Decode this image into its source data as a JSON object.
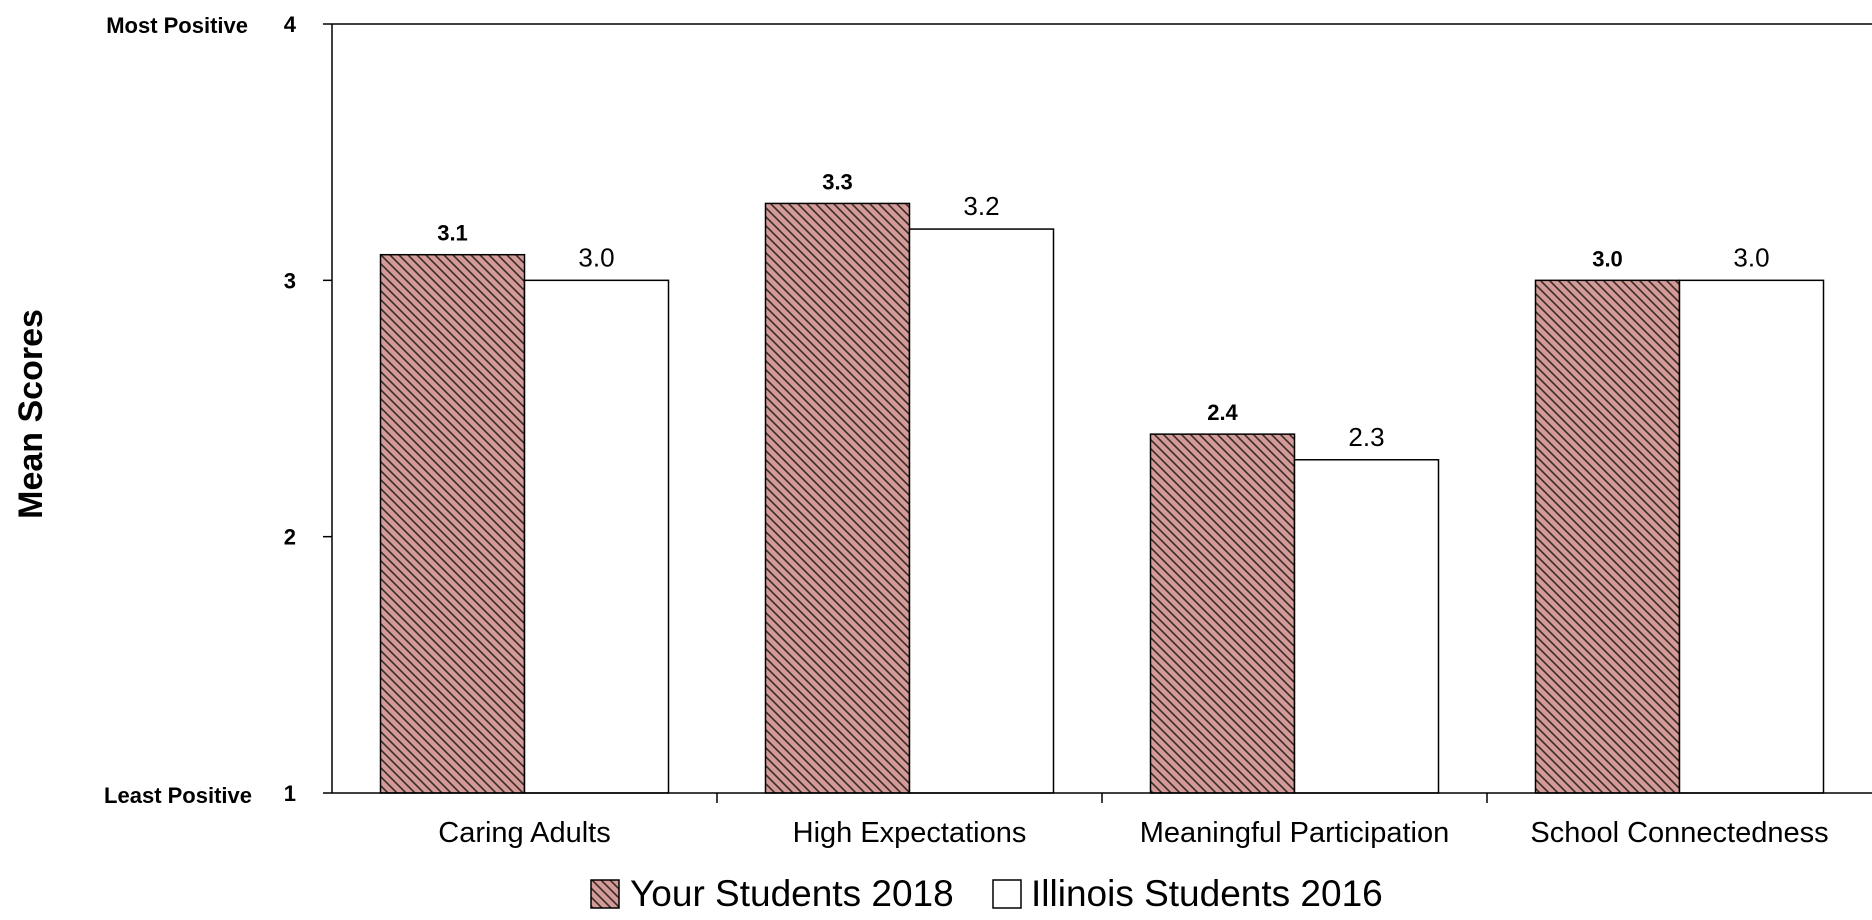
{
  "chart_data": {
    "type": "bar",
    "ylabel": "Mean Scores",
    "ylim": [
      1,
      4
    ],
    "yticks": [
      1,
      2,
      3,
      4
    ],
    "y_end_labels": {
      "bottom": "Least Positive",
      "top": "Most Positive"
    },
    "categories": [
      "Caring Adults",
      "High Expectations",
      "Meaningful Participation",
      "School Connectedness"
    ],
    "series": [
      {
        "name": "Your Students 2018",
        "values": [
          3.1,
          3.3,
          2.4,
          3.0
        ],
        "labels": [
          "3.1",
          "3.3",
          "2.4",
          "3.0"
        ],
        "color": "#d39b98",
        "pattern": "diagonal-hatch"
      },
      {
        "name": "Illinois Students 2016",
        "values": [
          3.0,
          3.2,
          2.3,
          3.0
        ],
        "labels": [
          "3.0",
          "3.2",
          "2.3",
          "3.0"
        ],
        "color": "#ffffff",
        "pattern": "none"
      }
    ],
    "legend_position": "bottom",
    "grid": false
  }
}
